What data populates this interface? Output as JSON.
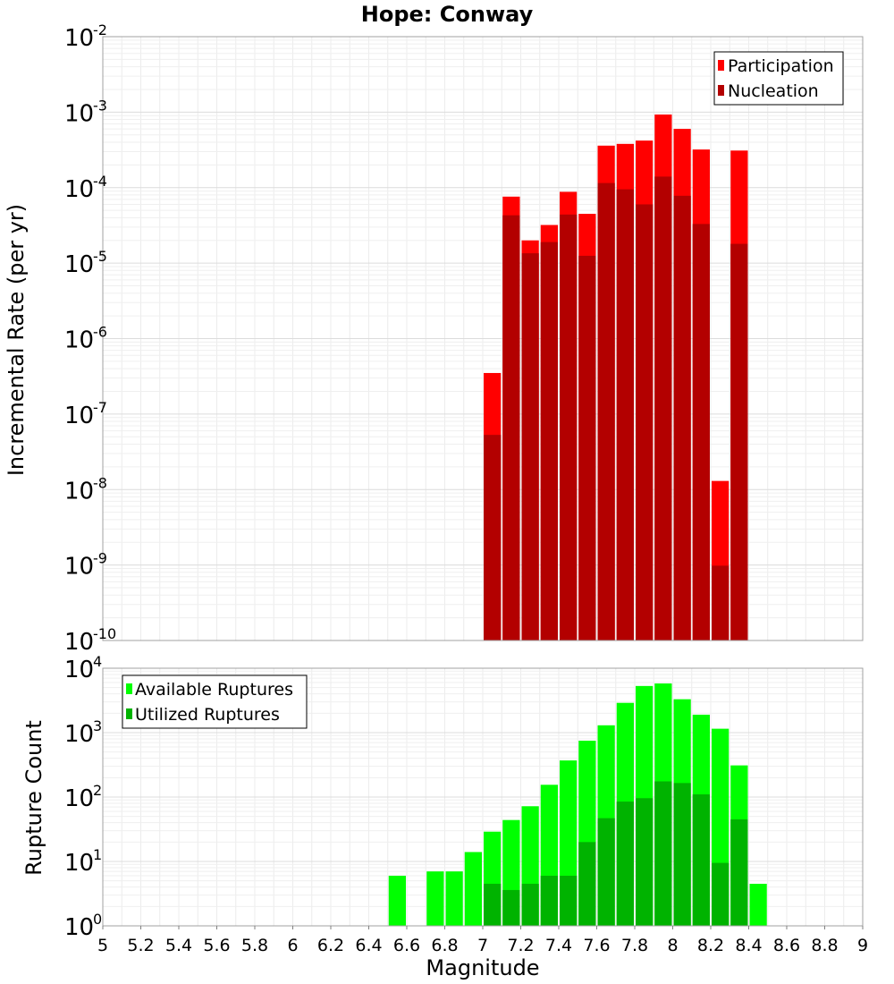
{
  "chart_data": [
    {
      "type": "bar",
      "title": "Hope: Conway",
      "ylabel": "Incremental Rate (per yr)",
      "xlabel": "",
      "xlim": [
        5,
        9
      ],
      "ylim": [
        1e-10,
        0.01
      ],
      "yscale": "log",
      "grid": true,
      "legend_placement": "top-right",
      "bar_width": 0.1,
      "x": [
        7.05,
        7.15,
        7.25,
        7.35,
        7.45,
        7.55,
        7.65,
        7.75,
        7.85,
        7.95,
        8.05,
        8.15,
        8.25,
        8.35
      ],
      "series": [
        {
          "name": "Participation",
          "color": "#ff0000",
          "values": [
            3.5e-07,
            7.6e-05,
            2e-05,
            3.2e-05,
            8.8e-05,
            4.5e-05,
            0.00036,
            0.00038,
            0.00042,
            0.00093,
            0.0006,
            0.00032,
            1.3e-08,
            0.00031
          ]
        },
        {
          "name": "Nucleation",
          "color": "#b30000",
          "values": [
            5.3e-08,
            4.3e-05,
            1.35e-05,
            1.9e-05,
            4.4e-05,
            1.25e-05,
            0.000115,
            9.5e-05,
            6e-05,
            0.00014,
            7.8e-05,
            3.3e-05,
            9.8e-10,
            1.8e-05
          ]
        }
      ]
    },
    {
      "type": "bar",
      "title": "",
      "ylabel": "Rupture Count",
      "xlabel": "Magnitude",
      "xlim": [
        5,
        9
      ],
      "ylim": [
        1,
        10000
      ],
      "yscale": "log",
      "grid": true,
      "legend_placement": "top-left",
      "bar_width": 0.1,
      "x": [
        6.55,
        6.75,
        6.85,
        6.95,
        7.05,
        7.15,
        7.25,
        7.35,
        7.45,
        7.55,
        7.65,
        7.75,
        7.85,
        7.95,
        8.05,
        8.15,
        8.25,
        8.35,
        8.45
      ],
      "x_ticks": [
        "5",
        "5.2",
        "5.4",
        "5.6",
        "5.8",
        "6",
        "6.2",
        "6.4",
        "6.6",
        "6.8",
        "7",
        "7.2",
        "7.4",
        "7.6",
        "7.8",
        "8",
        "8.2",
        "8.4",
        "8.6",
        "8.8",
        "9"
      ],
      "series": [
        {
          "name": "Available Ruptures",
          "color": "#00ff00",
          "values": [
            6,
            7,
            7,
            14,
            29,
            44,
            72,
            155,
            370,
            750,
            1300,
            2900,
            5300,
            5800,
            3300,
            1900,
            1150,
            310,
            4.5
          ]
        },
        {
          "name": "Utilized Ruptures",
          "color": "#00b300",
          "values": [
            0,
            0,
            0,
            0,
            4.5,
            3.6,
            4.5,
            6,
            6,
            20,
            47,
            85,
            96,
            175,
            165,
            110,
            9.5,
            45,
            0
          ]
        }
      ]
    }
  ]
}
